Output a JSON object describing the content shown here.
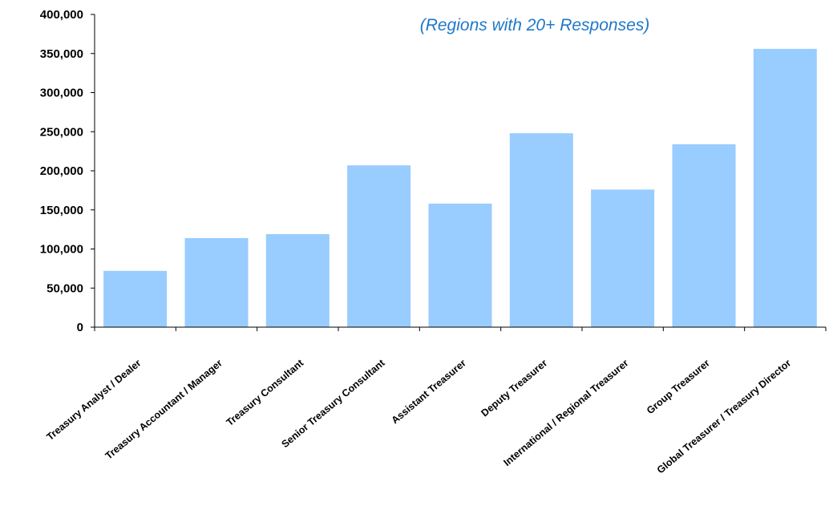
{
  "chart_data": {
    "type": "bar",
    "subtitle": "(Regions with 20+ Responses)",
    "categories": [
      "Treasury Analyst / Dealer",
      "Treasury Accountant / Manager",
      "Treasury Consultant",
      "Senior Treasury Consultant",
      "Assistant Treasurer",
      "Deputy Treasurer",
      "International / Regional Treasurer",
      "Group Treasurer",
      "Global Treasurer / Treasury Director"
    ],
    "values": [
      72000,
      114000,
      119000,
      207000,
      158000,
      248000,
      176000,
      234000,
      356000
    ],
    "ylim": [
      0,
      400000
    ],
    "yticks": [
      {
        "value": 0,
        "label": "0"
      },
      {
        "value": 50000,
        "label": "50,000"
      },
      {
        "value": 100000,
        "label": "100,000"
      },
      {
        "value": 150000,
        "label": "150,000"
      },
      {
        "value": 200000,
        "label": "200,000"
      },
      {
        "value": 250000,
        "label": "250,000"
      },
      {
        "value": 300000,
        "label": "300,000"
      },
      {
        "value": 350000,
        "label": "350,000"
      },
      {
        "value": 400000,
        "label": "400,000"
      }
    ],
    "grid": false,
    "colors": {
      "bar": "#99ccff",
      "subtitle": "#1f78c8",
      "axis": "#000000"
    }
  }
}
